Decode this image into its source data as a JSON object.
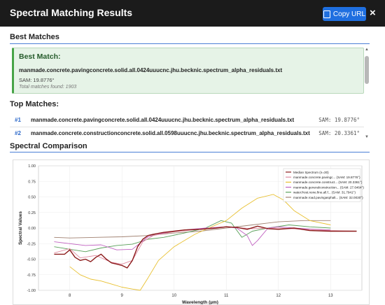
{
  "header": {
    "title": "Spectral Matching Results",
    "copy_label": "Copy URL",
    "close_label": "×"
  },
  "best_section": {
    "heading": "Best Matches",
    "card_title": "Best Match:",
    "name": "manmade.concrete.pavingconcrete.solid.all.0424uuucnc.jhu.becknic.spectrum_alpha_residuals.txt",
    "sam": "SAM: 19.8776°",
    "total": "Total matches found: 1903"
  },
  "top_matches": {
    "heading": "Top Matches:",
    "rows": [
      {
        "rank": "#1",
        "name": "manmade.concrete.pavingconcrete.solid.all.0424uuucnc.jhu.becknic.spectrum_alpha_residuals.txt",
        "sam": "SAM: 19.8776°"
      },
      {
        "rank": "#2",
        "name": "manmade.concrete.constructionconcrete.solid.all.0598uuucnc.jhu.becknic.spectrum_alpha_residuals.txt",
        "sam": "SAM: 20.3361°"
      }
    ]
  },
  "comparison": {
    "heading": "Spectral Comparison"
  },
  "chart_data": {
    "type": "line",
    "xlabel": "Wavelength (µm)",
    "ylabel": "Spectral Values",
    "xlim": [
      7.4,
      13.6
    ],
    "ylim": [
      -1.0,
      1.0
    ],
    "xticks": [
      "8",
      "9",
      "10",
      "11",
      "12",
      "13"
    ],
    "yticks": [
      "1.00",
      "0.75",
      "0.50",
      "0.25",
      "0.00",
      "-0.25",
      "-0.50",
      "-0.75",
      "-1.00"
    ],
    "grid": true,
    "legend_position": "top-right",
    "series": [
      {
        "name": "Median Spectrum (n=30)",
        "color": "#8b1a1a",
        "x": [
          7.7,
          7.9,
          8.0,
          8.1,
          8.2,
          8.3,
          8.4,
          8.5,
          8.6,
          8.7,
          8.8,
          8.9,
          9.0,
          9.1,
          9.2,
          9.3,
          9.4,
          9.5,
          9.6,
          9.8,
          10.0,
          10.2,
          10.5,
          10.8,
          11.0,
          11.2,
          11.4,
          11.6,
          11.8,
          12.0,
          12.3,
          12.6,
          13.0,
          13.5
        ],
        "y": [
          -0.42,
          -0.42,
          -0.35,
          -0.47,
          -0.52,
          -0.5,
          -0.54,
          -0.47,
          -0.42,
          -0.5,
          -0.56,
          -0.58,
          -0.6,
          -0.64,
          -0.52,
          -0.3,
          -0.18,
          -0.12,
          -0.1,
          -0.07,
          -0.05,
          -0.03,
          -0.02,
          0.0,
          0.02,
          0.01,
          -0.02,
          0.03,
          -0.01,
          -0.02,
          0.0,
          -0.04,
          -0.05,
          -0.05
        ]
      },
      {
        "name": "manmade.concrete.pavingc... (SAM: 19.8776°)",
        "color": "#e08aa0",
        "x": [
          7.7,
          8.0,
          8.2,
          8.5,
          8.8,
          9.0,
          9.2,
          9.4,
          9.6,
          10.0,
          10.5,
          11.0,
          11.5,
          12.0,
          12.5,
          13.0,
          13.5
        ],
        "y": [
          -0.4,
          -0.33,
          -0.48,
          -0.44,
          -0.55,
          -0.58,
          -0.52,
          -0.22,
          -0.12,
          -0.06,
          -0.02,
          0.02,
          -0.01,
          0.0,
          -0.02,
          -0.04,
          -0.05
        ]
      },
      {
        "name": "manmade.concrete.construct... (SAM: 20.3361°)",
        "color": "#e8c030",
        "x": [
          8.0,
          8.2,
          8.4,
          8.6,
          8.8,
          9.0,
          9.2,
          9.35,
          9.5,
          9.7,
          10.0,
          10.4,
          10.8,
          11.0,
          11.3,
          11.6,
          11.9,
          12.1,
          12.3,
          12.6,
          13.0
        ],
        "y": [
          -0.62,
          -0.75,
          -0.82,
          -0.85,
          -0.9,
          -0.95,
          -0.98,
          -1.0,
          -0.8,
          -0.52,
          -0.3,
          -0.1,
          0.05,
          0.12,
          0.32,
          0.48,
          0.54,
          0.45,
          0.28,
          0.12,
          0.05
        ]
      },
      {
        "name": "manmade.generalconstruction... (SAM: 27.6464°)",
        "color": "#c060c0",
        "x": [
          7.7,
          8.0,
          8.3,
          8.6,
          8.9,
          9.2,
          9.5,
          9.8,
          10.2,
          10.6,
          11.0,
          11.2,
          11.4,
          11.5,
          11.6,
          11.8,
          12.0,
          12.3,
          12.7,
          13.0
        ],
        "y": [
          -0.22,
          -0.25,
          -0.28,
          -0.27,
          -0.35,
          -0.34,
          -0.14,
          -0.08,
          -0.03,
          0.0,
          0.02,
          0.0,
          -0.12,
          -0.28,
          -0.2,
          0.0,
          0.02,
          0.0,
          -0.02,
          -0.03
        ]
      },
      {
        "name": "water.frost.none.fine.all.f... (SAM: 31.7941°)",
        "color": "#5aa05a",
        "x": [
          7.7,
          8.0,
          8.3,
          8.6,
          8.9,
          9.2,
          9.5,
          9.8,
          10.2,
          10.6,
          10.9,
          11.1,
          11.3,
          11.5,
          11.8,
          12.2,
          12.6,
          13.0
        ],
        "y": [
          -0.3,
          -0.34,
          -0.38,
          -0.32,
          -0.28,
          -0.26,
          -0.18,
          -0.15,
          -0.08,
          0.0,
          0.12,
          0.08,
          -0.15,
          -0.05,
          0.0,
          0.05,
          0.02,
          0.0
        ]
      },
      {
        "name": "manmade.road.pavingasphalt... (SAM: 32.0030°)",
        "color": "#a08070",
        "x": [
          7.7,
          8.0,
          8.5,
          9.0,
          9.5,
          10.0,
          10.5,
          11.0,
          11.5,
          12.0,
          12.5,
          13.0
        ],
        "y": [
          -0.15,
          -0.16,
          -0.15,
          -0.14,
          -0.12,
          -0.08,
          -0.05,
          0.0,
          0.05,
          0.1,
          0.12,
          0.12
        ]
      }
    ]
  }
}
